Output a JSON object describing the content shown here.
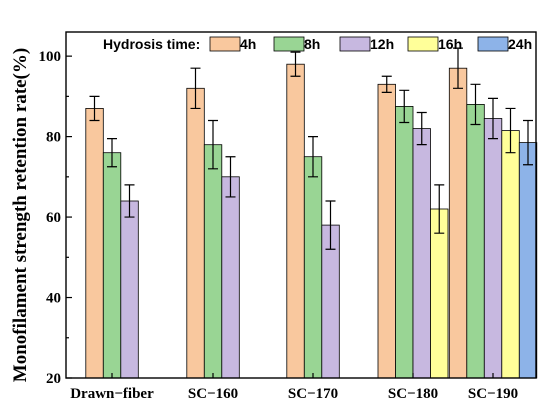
{
  "chart_data": {
    "type": "bar",
    "title": "",
    "xlabel": "",
    "ylabel": "Monofilament strength retention rate(%)",
    "ylim": [
      20,
      106
    ],
    "yticks": [
      20,
      40,
      60,
      80,
      100
    ],
    "grid": false,
    "legend_placement": "top",
    "legend_title": "Hydrosis time:",
    "categories": [
      "Drawn−fiber",
      "SC−160",
      "SC−170",
      "SC−180",
      "SC−190"
    ],
    "series": [
      {
        "name": "4h",
        "color": "#F9C89E",
        "values": [
          87,
          92,
          98,
          93,
          97
        ],
        "errors": [
          3,
          5,
          3,
          2,
          5
        ]
      },
      {
        "name": "8h",
        "color": "#99D594",
        "values": [
          76,
          78,
          75,
          87.5,
          88
        ],
        "errors": [
          3.5,
          6,
          5,
          4,
          5
        ]
      },
      {
        "name": "12h",
        "color": "#C7B8E0",
        "values": [
          64,
          70,
          58,
          82,
          84.5
        ],
        "errors": [
          4,
          5,
          6,
          4,
          5
        ]
      },
      {
        "name": "16h",
        "color": "#FFFF99",
        "values": [
          null,
          null,
          null,
          62,
          81.5
        ],
        "errors": [
          null,
          null,
          null,
          6,
          5.5
        ]
      },
      {
        "name": "24h",
        "color": "#8DB3E8",
        "values": [
          null,
          null,
          null,
          null,
          78.5
        ],
        "errors": [
          null,
          null,
          null,
          null,
          5.5
        ]
      }
    ]
  }
}
